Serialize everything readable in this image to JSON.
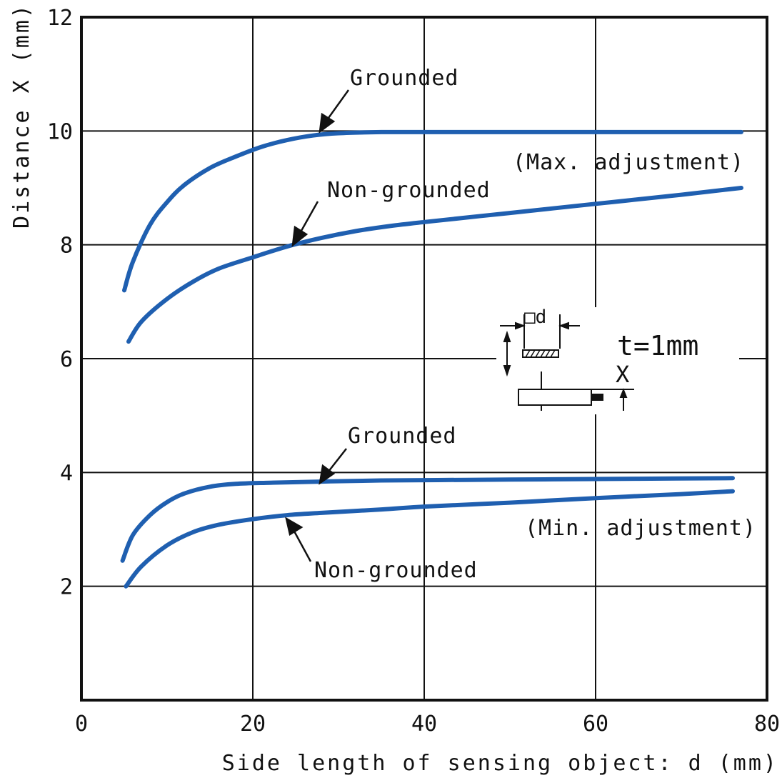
{
  "chart_data": {
    "type": "line",
    "title": "",
    "xlabel": "Side length of sensing object: d (mm)",
    "ylabel": "Distance X (mm)",
    "xlim": [
      0,
      80
    ],
    "ylim": [
      0,
      12
    ],
    "xticks": [
      0,
      20,
      40,
      60,
      80
    ],
    "xtick_labels": [
      "0",
      "20",
      "40",
      "60",
      "80"
    ],
    "yticks": [
      2,
      4,
      6,
      8,
      10,
      12
    ],
    "ytick_labels": [
      "2",
      "4",
      "6",
      "8",
      "10",
      "12"
    ],
    "grid": true,
    "line_color": "#1f5fb0",
    "series": [
      {
        "name": "Grounded (Max. adjustment)",
        "x": [
          5,
          6,
          8,
          10,
          12,
          15,
          18,
          21,
          24,
          27,
          30,
          35,
          40,
          50,
          60,
          70,
          77
        ],
        "y": [
          7.2,
          7.7,
          8.35,
          8.75,
          9.05,
          9.35,
          9.55,
          9.72,
          9.84,
          9.92,
          9.96,
          9.98,
          9.98,
          9.98,
          9.98,
          9.98,
          9.98
        ]
      },
      {
        "name": "Non-grounded (Max. adjustment)",
        "x": [
          5.5,
          7,
          10,
          13,
          16,
          20,
          24,
          28,
          32,
          36,
          40,
          50,
          60,
          70,
          77
        ],
        "y": [
          6.3,
          6.65,
          7.05,
          7.35,
          7.58,
          7.78,
          7.97,
          8.12,
          8.24,
          8.33,
          8.4,
          8.56,
          8.72,
          8.88,
          9.0
        ]
      },
      {
        "name": "Grounded (Min. adjustment)",
        "x": [
          4.8,
          6,
          8,
          10,
          12,
          15,
          18,
          22,
          28,
          35,
          45,
          55,
          65,
          76
        ],
        "y": [
          2.45,
          2.9,
          3.25,
          3.48,
          3.63,
          3.75,
          3.8,
          3.82,
          3.84,
          3.86,
          3.87,
          3.88,
          3.89,
          3.9
        ]
      },
      {
        "name": "Non-grounded (Min. adjustment)",
        "x": [
          5.2,
          7,
          10,
          13,
          16,
          20,
          24,
          28,
          35,
          40,
          50,
          60,
          70,
          76
        ],
        "y": [
          2.0,
          2.35,
          2.72,
          2.95,
          3.08,
          3.18,
          3.25,
          3.29,
          3.35,
          3.4,
          3.47,
          3.55,
          3.62,
          3.67
        ]
      }
    ],
    "annotations": [
      {
        "text": "Grounded",
        "series": 0
      },
      {
        "text": "(Max. adjustment)",
        "series": 0
      },
      {
        "text": "Non-grounded",
        "series": 1
      },
      {
        "text": "Grounded",
        "series": 2
      },
      {
        "text": "(Min. adjustment)",
        "series": 2
      },
      {
        "text": "Non-grounded",
        "series": 3
      }
    ],
    "inset": {
      "d_label": "□d",
      "thickness_label": "t=1mm",
      "distance_label": "X"
    }
  }
}
